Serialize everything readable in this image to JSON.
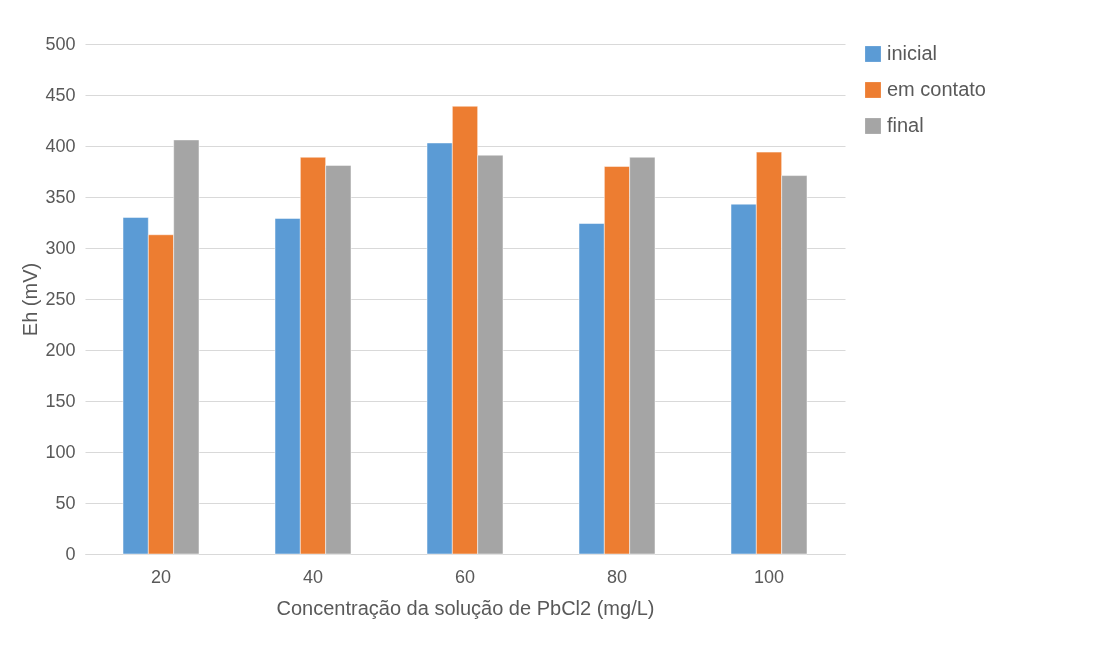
{
  "chart_data": {
    "type": "bar",
    "xlabel": "Concentração da solução de PbCl2 (mg/L)",
    "ylabel": "Eh (mV)",
    "categories": [
      "20",
      "40",
      "60",
      "80",
      "100"
    ],
    "series": [
      {
        "name": "inicial",
        "color": "#5b9bd5",
        "values": [
          330,
          329,
          403,
          324,
          343
        ]
      },
      {
        "name": "em contato",
        "color": "#ed7d31",
        "values": [
          313,
          389,
          439,
          380,
          394
        ]
      },
      {
        "name": "final",
        "color": "#a5a5a5",
        "values": [
          406,
          381,
          391,
          389,
          371
        ]
      }
    ],
    "ylim": [
      0,
      500
    ],
    "yticks": [
      0,
      50,
      100,
      150,
      200,
      250,
      300,
      350,
      400,
      450,
      500
    ],
    "grid": "y",
    "legend": "right"
  }
}
